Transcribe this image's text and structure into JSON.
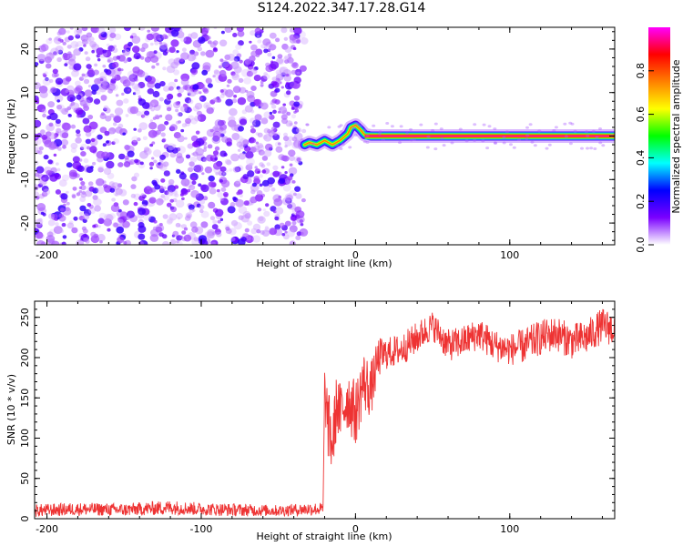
{
  "title": "S124.2022.347.17.28.G14",
  "chart_data": [
    {
      "type": "heatmap",
      "xlabel": "Height of straight line (km)",
      "ylabel": "Frequency (Hz)",
      "xlim": [
        -208,
        168
      ],
      "ylim": [
        -25,
        25
      ],
      "xticks": [
        -200,
        -100,
        0,
        100
      ],
      "xtick_labels": [
        "-200",
        "-100",
        "0",
        "100"
      ],
      "yticks": [
        -20,
        -10,
        0,
        10,
        20
      ],
      "ytick_labels": [
        "-20",
        "-10",
        "0",
        "10",
        "20"
      ],
      "colorbar": {
        "label": "Normalized spectral amplitude",
        "range": [
          0,
          1
        ],
        "ticks": [
          0.0,
          0.2,
          0.4,
          0.6,
          0.8
        ],
        "tick_labels": [
          "0.0",
          "0.2",
          "0.4",
          "0.6",
          "0.8"
        ],
        "colors": [
          "#ffffff",
          "#7a00ff",
          "#0000ff",
          "#00ffff",
          "#00ff00",
          "#ffff00",
          "#ff8000",
          "#ff0000",
          "#ff00ff"
        ]
      },
      "noise_region": {
        "x_start": -208,
        "x_end": -33,
        "mean_amplitude": 0.08
      },
      "signal_trace": {
        "x": [
          -33,
          -30,
          -25,
          -20,
          -15,
          -10,
          -5,
          -3,
          0,
          3,
          6,
          10,
          50,
          100,
          168
        ],
        "freq": [
          -2,
          -1.5,
          -2,
          -1,
          -2,
          -1,
          0.5,
          2,
          2.5,
          1.5,
          0.3,
          0,
          0,
          0,
          0
        ],
        "amplitude": [
          0.35,
          0.4,
          0.4,
          0.45,
          0.4,
          0.5,
          0.55,
          0.5,
          0.45,
          0.5,
          0.6,
          0.95,
          0.95,
          0.95,
          0.95
        ]
      }
    },
    {
      "type": "line",
      "xlabel": "Height of straight line (km)",
      "ylabel": "SNR (10 * v/v)",
      "xlim": [
        -208,
        168
      ],
      "ylim": [
        0,
        270
      ],
      "xticks": [
        -200,
        -100,
        0,
        100
      ],
      "xtick_labels": [
        "-200",
        "-100",
        "0",
        "100"
      ],
      "yticks": [
        0,
        50,
        100,
        150,
        200,
        250
      ],
      "ytick_labels": [
        "0",
        "50",
        "100",
        "150",
        "200",
        "250"
      ],
      "series": [
        {
          "color": "#ee3333",
          "x": [
            -208,
            -180,
            -150,
            -120,
            -100,
            -80,
            -50,
            -30,
            -21,
            -20,
            -18,
            -15,
            -12,
            -10,
            -5,
            0,
            5,
            10,
            15,
            20,
            30,
            40,
            50,
            60,
            70,
            80,
            90,
            100,
            110,
            120,
            130,
            140,
            150,
            160,
            168
          ],
          "y": [
            10,
            12,
            11,
            14,
            12,
            11,
            10,
            12,
            12,
            160,
            120,
            90,
            145,
            130,
            150,
            130,
            170,
            160,
            200,
            205,
            210,
            225,
            240,
            215,
            220,
            230,
            215,
            210,
            215,
            225,
            230,
            220,
            225,
            240,
            235
          ],
          "spread": [
            8,
            8,
            8,
            9,
            8,
            8,
            7,
            8,
            8,
            30,
            45,
            40,
            40,
            40,
            40,
            40,
            40,
            35,
            25,
            20,
            20,
            20,
            18,
            20,
            20,
            20,
            20,
            20,
            22,
            22,
            22,
            22,
            22,
            22,
            22
          ]
        }
      ]
    }
  ]
}
